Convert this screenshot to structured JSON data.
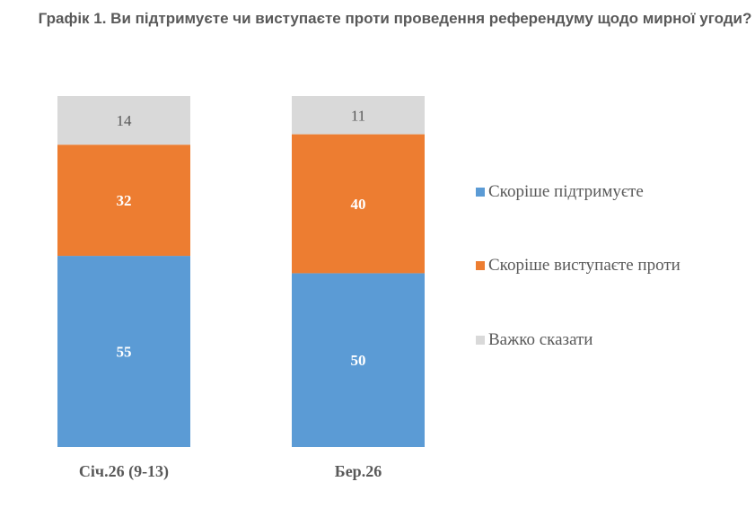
{
  "chart_data": {
    "type": "bar",
    "stacked": true,
    "title": "Графік 1. Ви підтримуєте чи виступаєте проти проведення референдуму щодо мирної угоди?",
    "categories": [
      "Січ.26 (9-13)",
      "Бер.26"
    ],
    "series": [
      {
        "name": "Скоріше підтримуєте",
        "values": [
          55,
          50
        ],
        "color": "#5B9BD5"
      },
      {
        "name": "Скоріше виступаєте проти",
        "values": [
          32,
          40
        ],
        "color": "#ED7D31"
      },
      {
        "name": "Важко сказати",
        "values": [
          14,
          11
        ],
        "color": "#D9D9D9"
      }
    ],
    "data_labels": true,
    "grid": false,
    "axes_visible": false,
    "legend_position": "right"
  }
}
